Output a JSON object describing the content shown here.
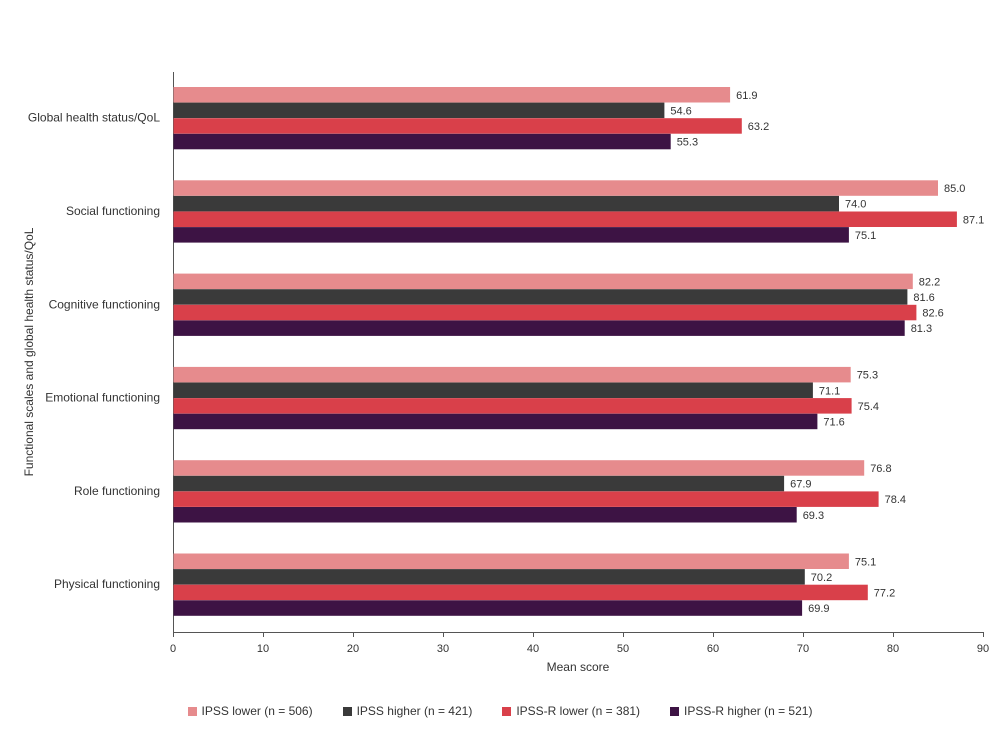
{
  "chart_data": {
    "type": "bar",
    "orientation": "horizontal",
    "title": "",
    "xlabel": "Mean score",
    "ylabel": "Functional scales and global health status/QoL",
    "xlim": [
      0,
      90
    ],
    "xticks": [
      0,
      10,
      20,
      30,
      40,
      50,
      60,
      70,
      80,
      90
    ],
    "grid": false,
    "legend_position": "bottom-center",
    "categories": [
      "Global health status/QoL",
      "Social functioning",
      "Cognitive functioning",
      "Emotional functioning",
      "Role functioning",
      "Physical functioning"
    ],
    "series": [
      {
        "name": "IPSS lower (n = 506)",
        "color": "#e68b8d",
        "values": [
          61.9,
          85.0,
          82.2,
          75.3,
          76.8,
          75.1
        ],
        "labels": [
          "61.9",
          "85.0",
          "82.2",
          "75.3",
          "76.8",
          "75.1"
        ]
      },
      {
        "name": "IPSS higher (n = 421)",
        "color": "#3a3a3a",
        "values": [
          54.6,
          74.0,
          81.6,
          71.1,
          67.9,
          70.2
        ],
        "labels": [
          "54.6",
          "74.0",
          "81.6",
          "71.1",
          "67.9",
          "70.2"
        ]
      },
      {
        "name": "IPSS-R lower (n = 381)",
        "color": "#d9404a",
        "values": [
          63.2,
          87.1,
          82.6,
          75.4,
          78.4,
          77.2
        ],
        "labels": [
          "63.2",
          "87.1",
          "82.6",
          "75.4",
          "78.4",
          "77.2"
        ]
      },
      {
        "name": "IPSS-R higher (n = 521)",
        "color": "#3d1344",
        "values": [
          55.3,
          75.1,
          81.3,
          71.6,
          69.3,
          69.9
        ],
        "labels": [
          "55.3",
          "75.1",
          "81.3",
          "71.6",
          "69.3",
          "69.9"
        ]
      }
    ]
  }
}
